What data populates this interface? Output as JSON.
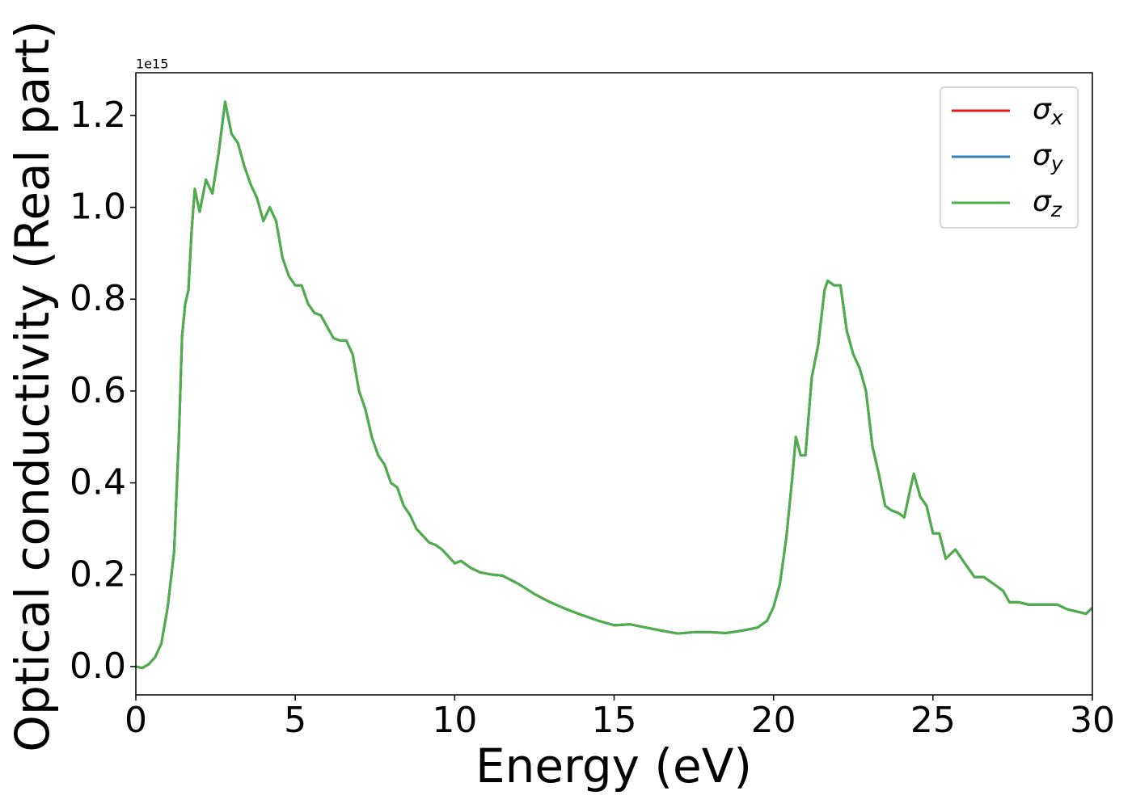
{
  "chart_data": {
    "type": "line",
    "xlabel": "Energy (eV)",
    "ylabel": "Optical conductivity (Real part)",
    "y_offset_label": "1e15",
    "xlim": [
      0,
      30
    ],
    "xticks": [
      0,
      5,
      10,
      15,
      20,
      25,
      30
    ],
    "ylim": [
      -0.0616,
      1.293
    ],
    "yticks": [
      {
        "value": 0,
        "label": "0.0"
      },
      0.2,
      0.4,
      0.6,
      0.8,
      {
        "value": 1,
        "label": "1.0"
      },
      1.2
    ],
    "legend": "upper right",
    "x": [
      0,
      0.2,
      0.4,
      0.6,
      0.8,
      1.0,
      1.2,
      1.35,
      1.45,
      1.55,
      1.65,
      1.75,
      1.85,
      2.0,
      2.2,
      2.4,
      2.6,
      2.8,
      3.0,
      3.2,
      3.4,
      3.6,
      3.8,
      4.0,
      4.2,
      4.4,
      4.6,
      4.8,
      5.0,
      5.2,
      5.4,
      5.6,
      5.8,
      6.0,
      6.2,
      6.4,
      6.6,
      6.8,
      7.0,
      7.2,
      7.4,
      7.6,
      7.8,
      8.0,
      8.2,
      8.4,
      8.6,
      8.8,
      9.0,
      9.2,
      9.4,
      9.6,
      9.8,
      10.0,
      10.2,
      10.5,
      10.8,
      11.2,
      11.5,
      12.0,
      12.5,
      13.0,
      13.5,
      14.0,
      14.5,
      15.0,
      15.5,
      16.0,
      16.5,
      17.0,
      17.5,
      18.0,
      18.5,
      19.0,
      19.5,
      19.8,
      20.0,
      20.2,
      20.4,
      20.6,
      20.7,
      20.85,
      21.0,
      21.2,
      21.4,
      21.6,
      21.7,
      21.9,
      22.1,
      22.3,
      22.5,
      22.7,
      22.9,
      23.1,
      23.3,
      23.5,
      23.7,
      23.9,
      24.1,
      24.3,
      24.4,
      24.6,
      24.8,
      25.0,
      25.2,
      25.4,
      25.7,
      26.0,
      26.3,
      26.6,
      26.9,
      27.2,
      27.4,
      27.7,
      28.0,
      28.3,
      28.6,
      28.9,
      29.2,
      29.5,
      29.8,
      30.0
    ],
    "series": [
      {
        "name": "σx",
        "color": "#e41a1c",
        "values": [
          0,
          -0.003,
          0.005,
          0.02,
          0.05,
          0.13,
          0.25,
          0.5,
          0.72,
          0.79,
          0.82,
          0.95,
          1.04,
          0.99,
          1.06,
          1.03,
          1.12,
          1.23,
          1.16,
          1.14,
          1.09,
          1.05,
          1.02,
          0.97,
          1.0,
          0.97,
          0.89,
          0.85,
          0.83,
          0.83,
          0.79,
          0.77,
          0.765,
          0.74,
          0.715,
          0.71,
          0.71,
          0.68,
          0.6,
          0.56,
          0.5,
          0.46,
          0.44,
          0.4,
          0.39,
          0.35,
          0.33,
          0.3,
          0.285,
          0.27,
          0.265,
          0.255,
          0.24,
          0.225,
          0.23,
          0.215,
          0.205,
          0.2,
          0.198,
          0.18,
          0.158,
          0.14,
          0.125,
          0.112,
          0.1,
          0.09,
          0.092,
          0.085,
          0.078,
          0.072,
          0.075,
          0.075,
          0.073,
          0.078,
          0.085,
          0.1,
          0.13,
          0.18,
          0.28,
          0.42,
          0.5,
          0.46,
          0.46,
          0.63,
          0.7,
          0.82,
          0.84,
          0.83,
          0.83,
          0.73,
          0.68,
          0.65,
          0.6,
          0.48,
          0.42,
          0.35,
          0.34,
          0.335,
          0.325,
          0.39,
          0.42,
          0.37,
          0.35,
          0.29,
          0.29,
          0.235,
          0.255,
          0.225,
          0.195,
          0.195,
          0.18,
          0.165,
          0.14,
          0.14,
          0.135,
          0.135,
          0.135,
          0.135,
          0.125,
          0.12,
          0.115,
          0.128
        ]
      },
      {
        "name": "σy",
        "color": "#377eb8",
        "values": [
          0,
          -0.003,
          0.005,
          0.02,
          0.05,
          0.13,
          0.25,
          0.5,
          0.72,
          0.79,
          0.82,
          0.95,
          1.04,
          0.99,
          1.06,
          1.03,
          1.12,
          1.23,
          1.16,
          1.14,
          1.09,
          1.05,
          1.02,
          0.97,
          1.0,
          0.97,
          0.89,
          0.85,
          0.83,
          0.83,
          0.79,
          0.77,
          0.765,
          0.74,
          0.715,
          0.71,
          0.71,
          0.68,
          0.6,
          0.56,
          0.5,
          0.46,
          0.44,
          0.4,
          0.39,
          0.35,
          0.33,
          0.3,
          0.285,
          0.27,
          0.265,
          0.255,
          0.24,
          0.225,
          0.23,
          0.215,
          0.205,
          0.2,
          0.198,
          0.18,
          0.158,
          0.14,
          0.125,
          0.112,
          0.1,
          0.09,
          0.092,
          0.085,
          0.078,
          0.072,
          0.075,
          0.075,
          0.073,
          0.078,
          0.085,
          0.1,
          0.13,
          0.18,
          0.28,
          0.42,
          0.5,
          0.46,
          0.46,
          0.63,
          0.7,
          0.82,
          0.84,
          0.83,
          0.83,
          0.73,
          0.68,
          0.65,
          0.6,
          0.48,
          0.42,
          0.35,
          0.34,
          0.335,
          0.325,
          0.39,
          0.42,
          0.37,
          0.35,
          0.29,
          0.29,
          0.235,
          0.255,
          0.225,
          0.195,
          0.195,
          0.18,
          0.165,
          0.14,
          0.14,
          0.135,
          0.135,
          0.135,
          0.135,
          0.125,
          0.12,
          0.115,
          0.128
        ]
      },
      {
        "name": "σz",
        "color": "#4daf4a",
        "values": [
          0,
          -0.003,
          0.005,
          0.02,
          0.05,
          0.13,
          0.25,
          0.5,
          0.72,
          0.79,
          0.82,
          0.95,
          1.04,
          0.99,
          1.06,
          1.03,
          1.12,
          1.23,
          1.16,
          1.14,
          1.09,
          1.05,
          1.02,
          0.97,
          1.0,
          0.97,
          0.89,
          0.85,
          0.83,
          0.83,
          0.79,
          0.77,
          0.765,
          0.74,
          0.715,
          0.71,
          0.71,
          0.68,
          0.6,
          0.56,
          0.5,
          0.46,
          0.44,
          0.4,
          0.39,
          0.35,
          0.33,
          0.3,
          0.285,
          0.27,
          0.265,
          0.255,
          0.24,
          0.225,
          0.23,
          0.215,
          0.205,
          0.2,
          0.198,
          0.18,
          0.158,
          0.14,
          0.125,
          0.112,
          0.1,
          0.09,
          0.092,
          0.085,
          0.078,
          0.072,
          0.075,
          0.075,
          0.073,
          0.078,
          0.085,
          0.1,
          0.13,
          0.18,
          0.28,
          0.42,
          0.5,
          0.46,
          0.46,
          0.63,
          0.7,
          0.82,
          0.84,
          0.83,
          0.83,
          0.73,
          0.68,
          0.65,
          0.6,
          0.48,
          0.42,
          0.35,
          0.34,
          0.335,
          0.325,
          0.39,
          0.42,
          0.37,
          0.35,
          0.29,
          0.29,
          0.235,
          0.255,
          0.225,
          0.195,
          0.195,
          0.18,
          0.165,
          0.14,
          0.14,
          0.135,
          0.135,
          0.135,
          0.135,
          0.125,
          0.12,
          0.115,
          0.128
        ]
      }
    ]
  }
}
